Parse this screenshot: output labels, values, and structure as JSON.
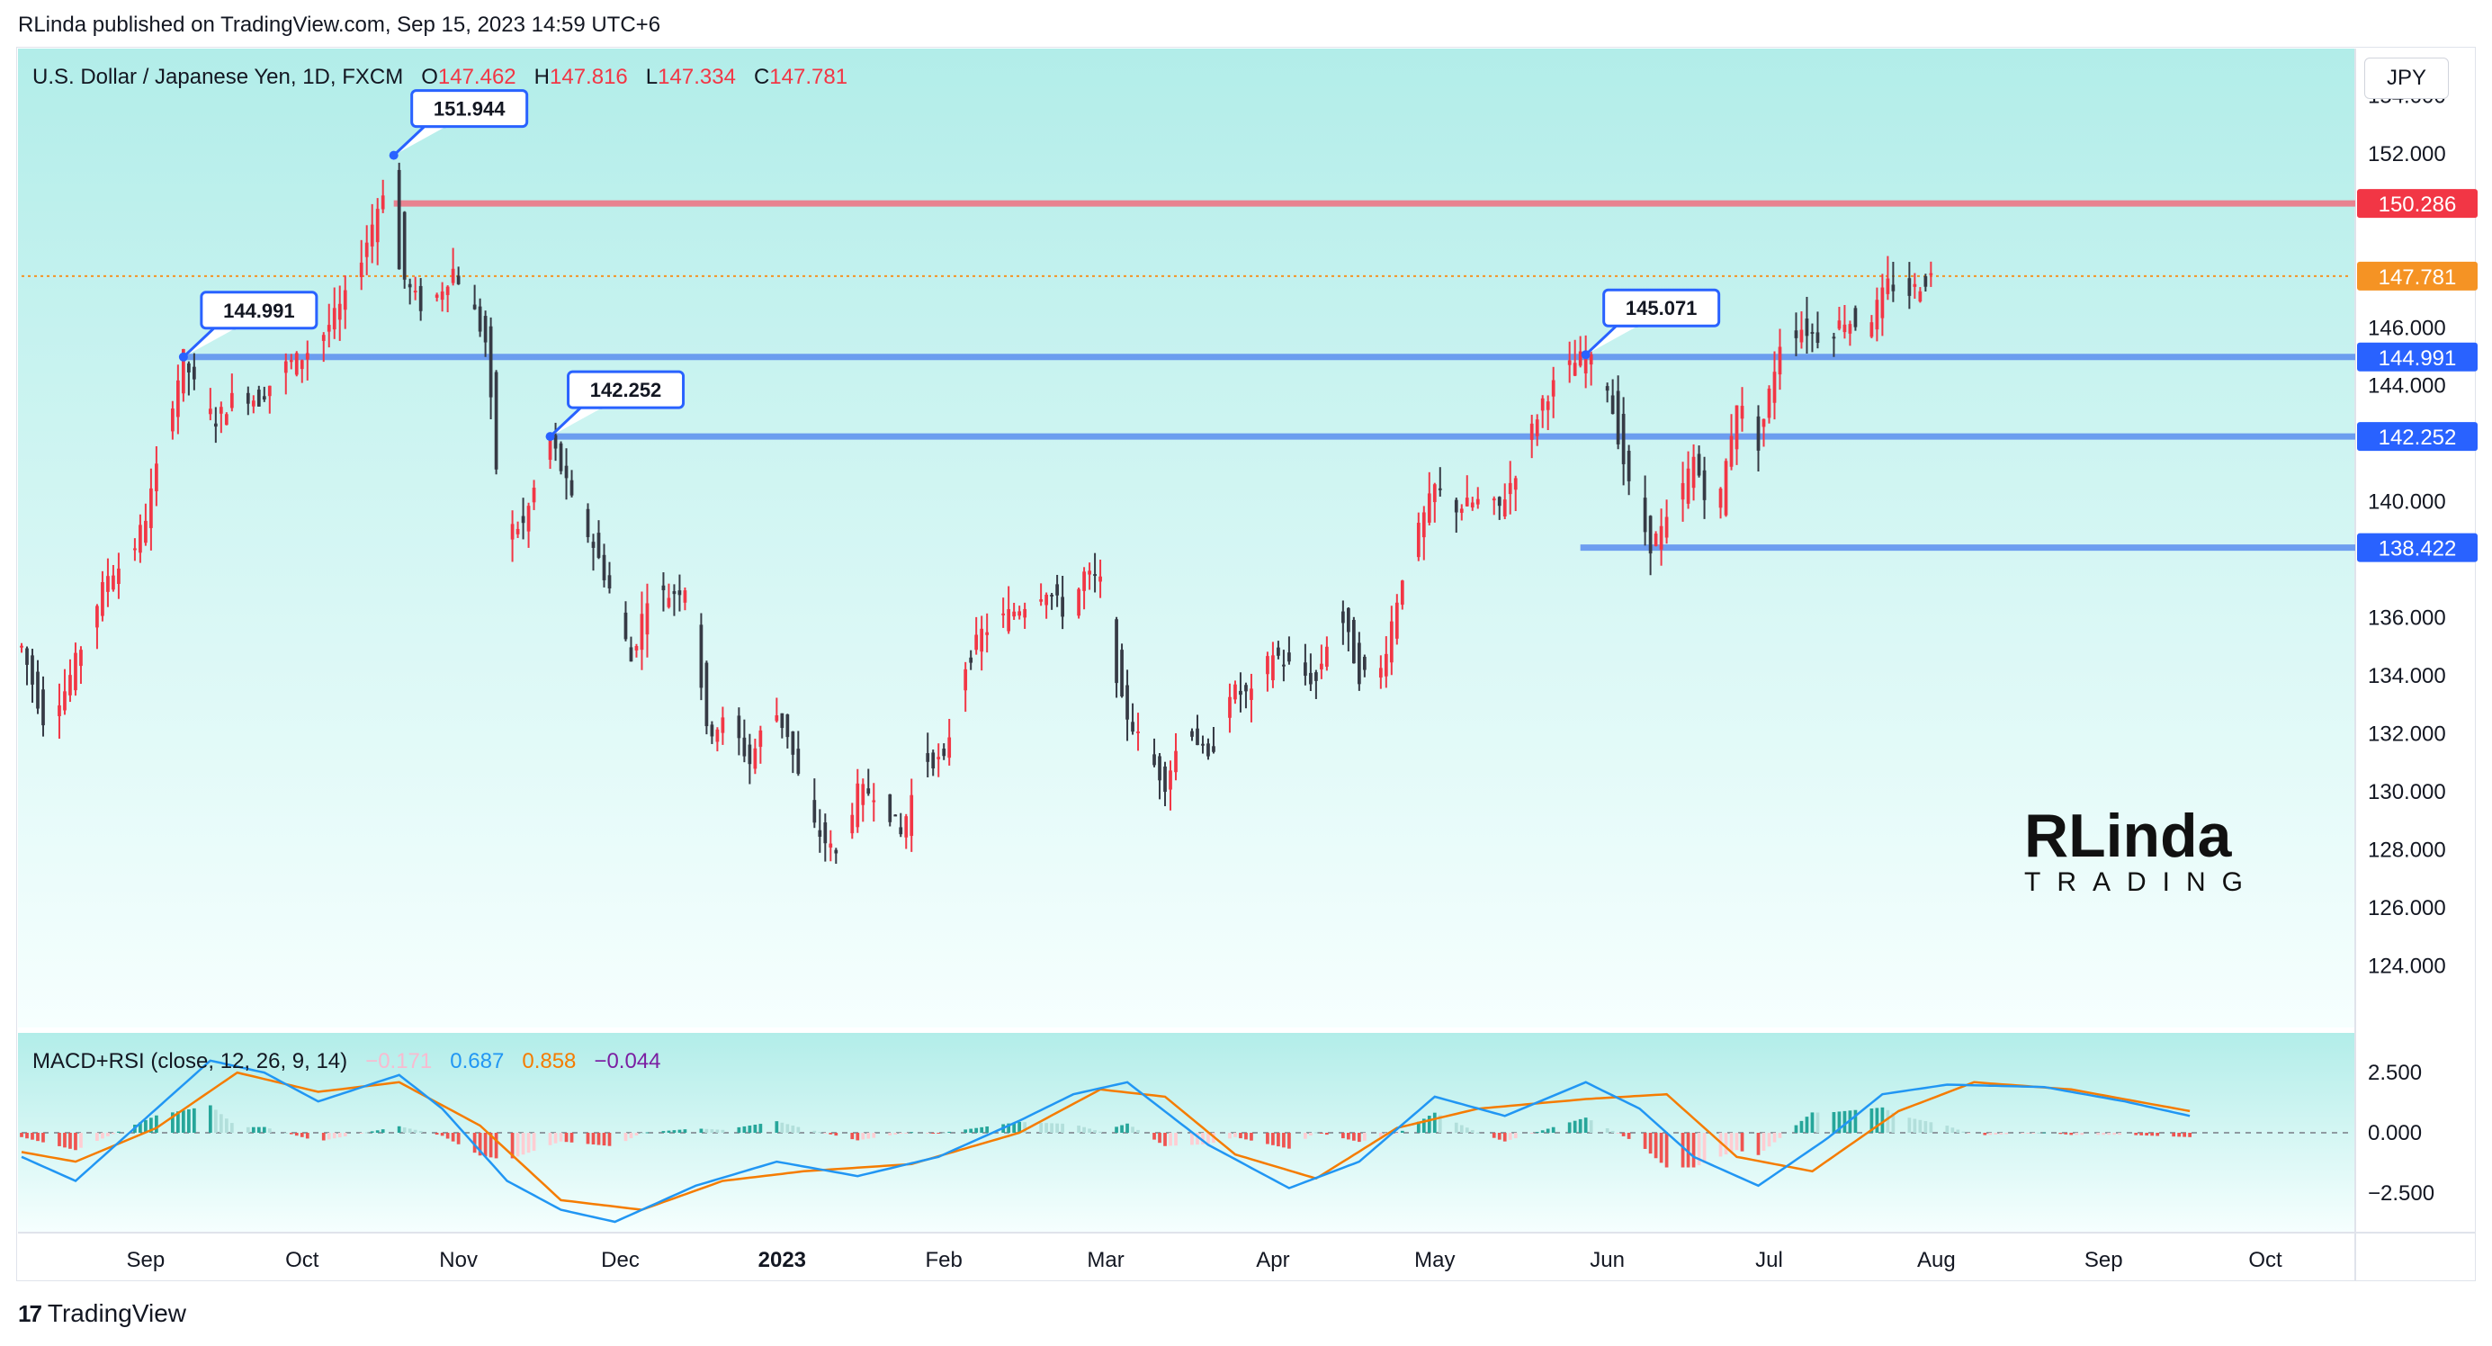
{
  "header": {
    "published": "RLinda published on TradingView.com, Sep 15, 2023 14:59 UTC+6"
  },
  "legend": {
    "symbol": "U.S. Dollar / Japanese Yen, 1D, FXCM",
    "o_label": "O",
    "o_value": "147.462",
    "h_label": "H",
    "h_value": "147.816",
    "l_label": "L",
    "l_value": "147.334",
    "c_label": "C",
    "c_value": "147.781"
  },
  "unit_label": "JPY",
  "macd_legend": {
    "name": "MACD+RSI (close, 12, 26, 9, 14)",
    "hist": "−0.171",
    "macd": "0.687",
    "signal": "0.858",
    "diff": "−0.044"
  },
  "footer": {
    "brand": "TradingView"
  },
  "watermark": {
    "line1": "RLinda",
    "line2": "TRADING"
  },
  "colors": {
    "bg_top": "#b2ede9",
    "bg_bottom": "#f6fffe",
    "candle_up": "#f23645",
    "candle_down": "#363a45",
    "level_blue": "#5b8def",
    "level_red": "#f07080",
    "current_price": "#f59324",
    "macd_line": "#2196f3",
    "signal_line": "#f57c00",
    "hist_pos": "#26a69a",
    "hist_neg": "#ef5350"
  },
  "chart_data": {
    "type": "candlestick",
    "title": "U.S. Dollar / Japanese Yen, 1D, FXCM",
    "y_axis": {
      "min": 122.0,
      "max": 155.5,
      "ticks": [
        "154.000",
        "152.000",
        "146.000",
        "144.000",
        "140.000",
        "136.000",
        "134.000",
        "132.000",
        "130.000",
        "128.000",
        "126.000",
        "124.000"
      ],
      "tick_values": [
        154,
        152,
        146,
        144,
        140,
        136,
        134,
        132,
        130,
        128,
        126,
        124
      ]
    },
    "x_axis": {
      "labels": [
        "Sep",
        "Oct",
        "Nov",
        "Dec",
        "2023",
        "Feb",
        "Mar",
        "Apr",
        "May",
        "Jun",
        "Jul",
        "Aug",
        "Sep",
        "Oct"
      ],
      "label_days": [
        23,
        52,
        81,
        111,
        141,
        171,
        201,
        232,
        262,
        294,
        324,
        355,
        386,
        416
      ],
      "start": "2022-08-09",
      "last_candle_day": 402,
      "max_day": 432
    },
    "price_path": [
      [
        0,
        135.0
      ],
      [
        4,
        132.5
      ],
      [
        8,
        133.5
      ],
      [
        16,
        137.5
      ],
      [
        20,
        138.0
      ],
      [
        23,
        139.5
      ],
      [
        28,
        143.5
      ],
      [
        30,
        144.991
      ],
      [
        33,
        143.5
      ],
      [
        36,
        142.8
      ],
      [
        40,
        143.8
      ],
      [
        44,
        143.5
      ],
      [
        48,
        144.6
      ],
      [
        52,
        145.0
      ],
      [
        56,
        145.8
      ],
      [
        60,
        147.0
      ],
      [
        64,
        149.0
      ],
      [
        69,
        151.944
      ],
      [
        70,
        148.0
      ],
      [
        72,
        147.3
      ],
      [
        75,
        146.5
      ],
      [
        80,
        148.0
      ],
      [
        83,
        147.0
      ],
      [
        86,
        145.5
      ],
      [
        89,
        139.0
      ],
      [
        93,
        139.2
      ],
      [
        98,
        142.252
      ],
      [
        102,
        140.0
      ],
      [
        106,
        138.5
      ],
      [
        110,
        136.5
      ],
      [
        113,
        134.5
      ],
      [
        116,
        136.8
      ],
      [
        120,
        136.8
      ],
      [
        124,
        137.2
      ],
      [
        127,
        132.0
      ],
      [
        131,
        132.5
      ],
      [
        135,
        131.0
      ],
      [
        139,
        133.0
      ],
      [
        142,
        132.0
      ],
      [
        146,
        129.0
      ],
      [
        151,
        127.8
      ],
      [
        155,
        130.0
      ],
      [
        159,
        130.0
      ],
      [
        163,
        128.5
      ],
      [
        167,
        131.2
      ],
      [
        171,
        131.0
      ],
      [
        174,
        134.0
      ],
      [
        178,
        135.5
      ],
      [
        182,
        136.0
      ],
      [
        186,
        136.5
      ],
      [
        190,
        137.0
      ],
      [
        194,
        136.0
      ],
      [
        197,
        137.5
      ],
      [
        200,
        137.2
      ],
      [
        204,
        133.0
      ],
      [
        208,
        131.5
      ],
      [
        212,
        130.3
      ],
      [
        216,
        132.5
      ],
      [
        220,
        131.0
      ],
      [
        224,
        133.5
      ],
      [
        228,
        133.3
      ],
      [
        232,
        134.8
      ],
      [
        236,
        134.2
      ],
      [
        240,
        133.8
      ],
      [
        244,
        136.5
      ],
      [
        248,
        134.0
      ],
      [
        252,
        134.2
      ],
      [
        256,
        137.5
      ],
      [
        259,
        139.0
      ],
      [
        262,
        140.5
      ],
      [
        266,
        139.8
      ],
      [
        270,
        140.0
      ],
      [
        274,
        139.8
      ],
      [
        278,
        141.5
      ],
      [
        282,
        143.5
      ],
      [
        286,
        144.5
      ],
      [
        290,
        145.071
      ],
      [
        294,
        144.0
      ],
      [
        298,
        140.5
      ],
      [
        302,
        138.5
      ],
      [
        306,
        139.5
      ],
      [
        310,
        141.5
      ],
      [
        314,
        139.2
      ],
      [
        318,
        143.5
      ],
      [
        322,
        142.0
      ],
      [
        326,
        145.5
      ],
      [
        330,
        146.0
      ],
      [
        334,
        145.6
      ],
      [
        338,
        146.3
      ],
      [
        342,
        146.0
      ],
      [
        346,
        147.5
      ],
      [
        350,
        147.2
      ],
      [
        354,
        147.781
      ],
      [
        355,
        147.781
      ]
    ],
    "levels": [
      {
        "label": "150.286",
        "value": 150.286,
        "style": "red",
        "from_day": 69
      },
      {
        "label": "144.991",
        "value": 144.991,
        "style": "blue",
        "from_day": 30
      },
      {
        "label": "142.252",
        "value": 142.252,
        "style": "blue",
        "from_day": 98
      },
      {
        "label": "138.422",
        "value": 138.422,
        "style": "blue",
        "from_day": 289
      }
    ],
    "current_price": {
      "label": "147.781",
      "value": 147.781
    },
    "callouts": [
      {
        "label": "151.944",
        "day": 69,
        "value": 151.944
      },
      {
        "label": "144.991",
        "day": 30,
        "value": 144.991
      },
      {
        "label": "142.252",
        "day": 98,
        "value": 142.252
      },
      {
        "label": "145.071",
        "day": 290,
        "value": 145.071
      }
    ],
    "macd": {
      "y_ticks": [
        "2.500",
        "0.000",
        "−2.500"
      ],
      "tick_values": [
        2.5,
        0,
        -2.5
      ],
      "y_range": [
        -4.0,
        4.0
      ],
      "macd_path": [
        [
          0,
          -1.0
        ],
        [
          10,
          -2.0
        ],
        [
          25,
          1.0
        ],
        [
          35,
          3.0
        ],
        [
          45,
          2.5
        ],
        [
          55,
          1.3
        ],
        [
          70,
          2.4
        ],
        [
          78,
          1.0
        ],
        [
          90,
          -2.0
        ],
        [
          100,
          -3.2
        ],
        [
          110,
          -3.7
        ],
        [
          125,
          -2.2
        ],
        [
          140,
          -1.2
        ],
        [
          155,
          -1.8
        ],
        [
          170,
          -1.0
        ],
        [
          185,
          0.5
        ],
        [
          195,
          1.6
        ],
        [
          205,
          2.1
        ],
        [
          220,
          -0.5
        ],
        [
          235,
          -2.3
        ],
        [
          248,
          -1.2
        ],
        [
          262,
          1.5
        ],
        [
          275,
          0.7
        ],
        [
          290,
          2.1
        ],
        [
          300,
          1.0
        ],
        [
          310,
          -1.0
        ],
        [
          322,
          -2.2
        ],
        [
          335,
          -0.2
        ],
        [
          345,
          1.6
        ],
        [
          357,
          2.0
        ],
        [
          375,
          1.9
        ],
        [
          390,
          1.3
        ],
        [
          402,
          0.7
        ]
      ],
      "signal_path": [
        [
          0,
          -0.8
        ],
        [
          10,
          -1.2
        ],
        [
          25,
          0.2
        ],
        [
          40,
          2.5
        ],
        [
          55,
          1.7
        ],
        [
          70,
          2.1
        ],
        [
          85,
          0.3
        ],
        [
          100,
          -2.8
        ],
        [
          115,
          -3.2
        ],
        [
          130,
          -2.0
        ],
        [
          145,
          -1.6
        ],
        [
          165,
          -1.3
        ],
        [
          185,
          0.0
        ],
        [
          200,
          1.8
        ],
        [
          212,
          1.5
        ],
        [
          225,
          -0.9
        ],
        [
          240,
          -1.9
        ],
        [
          255,
          0.2
        ],
        [
          270,
          1.0
        ],
        [
          290,
          1.4
        ],
        [
          305,
          1.6
        ],
        [
          318,
          -1.0
        ],
        [
          332,
          -1.6
        ],
        [
          348,
          0.9
        ],
        [
          362,
          2.1
        ],
        [
          380,
          1.8
        ],
        [
          402,
          0.9
        ]
      ]
    }
  }
}
